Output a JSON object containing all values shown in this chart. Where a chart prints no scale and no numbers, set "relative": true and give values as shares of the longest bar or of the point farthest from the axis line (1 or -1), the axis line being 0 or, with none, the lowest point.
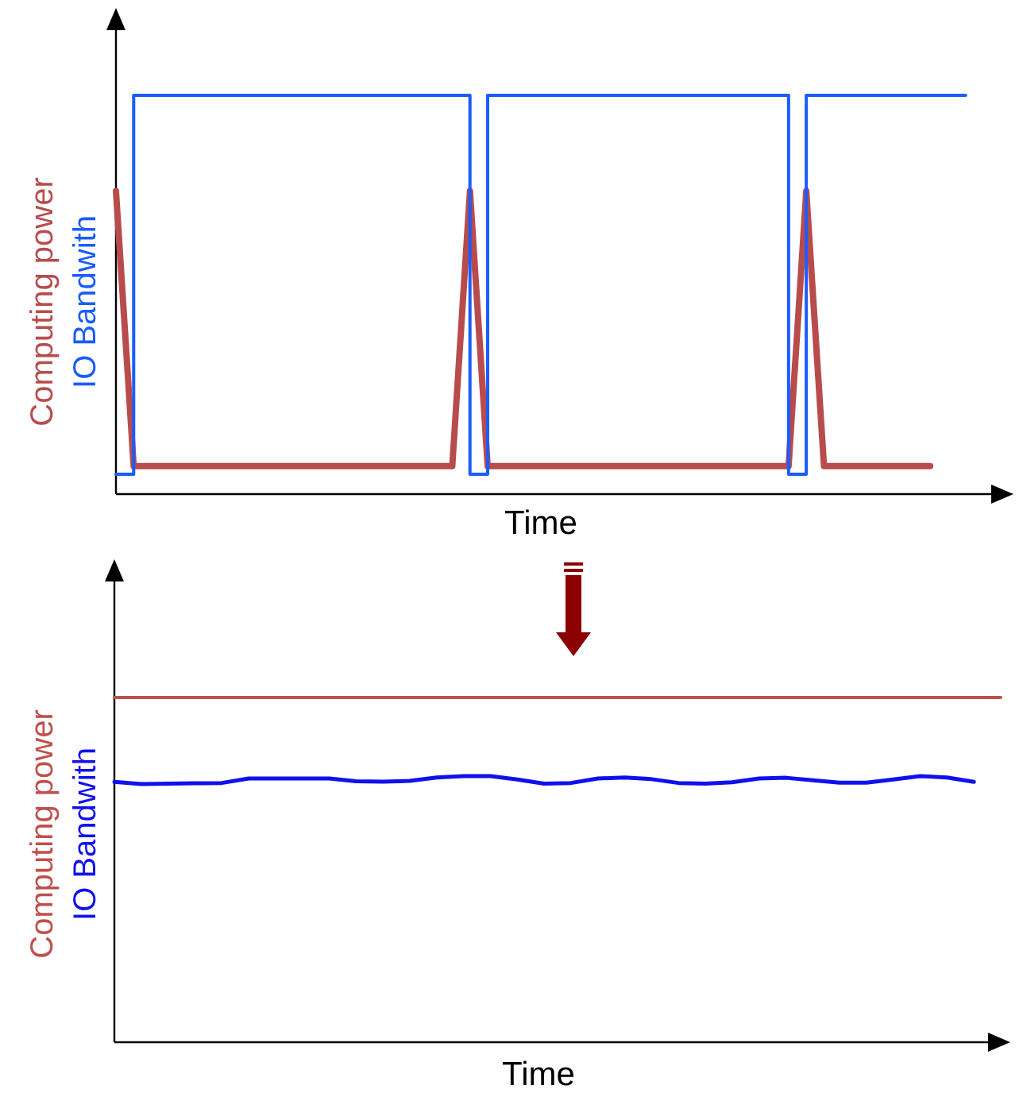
{
  "chart_data": [
    {
      "type": "line",
      "relative": true,
      "xlabel": "Time",
      "categories": [
        null,
        null,
        null,
        null,
        null,
        null,
        null,
        null,
        null,
        null,
        null,
        null,
        null,
        null,
        null,
        null,
        null,
        null,
        null,
        null,
        null,
        null,
        null,
        null,
        null,
        null,
        null,
        null,
        null,
        null,
        null,
        null,
        null,
        null,
        null,
        null,
        null,
        null,
        null,
        null,
        null,
        null,
        null,
        null,
        null,
        null,
        null,
        null,
        null,
        null
      ],
      "series": [
        {
          "name": "Computing power",
          "color": "#b84c4c",
          "values": [
            0.76,
            0.07,
            0.07,
            0.07,
            0.07,
            0.07,
            0.07,
            0.07,
            0.07,
            0.07,
            0.07,
            0.07,
            0.07,
            0.07,
            0.07,
            0.07,
            0.07,
            0.07,
            0.07,
            0.07,
            0.76,
            0.07,
            0.07,
            0.07,
            0.07,
            0.07,
            0.07,
            0.07,
            0.07,
            0.07,
            0.07,
            0.07,
            0.07,
            0.07,
            0.07,
            0.07,
            0.07,
            0.07,
            0.07,
            0.76,
            0.07,
            0.07,
            0.07,
            0.07,
            0.07,
            0.07,
            0.07,
            null,
            null,
            null
          ]
        },
        {
          "name": "IO Bandwith",
          "color": "#1a5cff",
          "type": "step",
          "values": [
            0.05,
            1,
            1,
            1,
            1,
            1,
            1,
            1,
            1,
            1,
            1,
            1,
            1,
            1,
            1,
            1,
            1,
            1,
            1,
            1,
            0.05,
            1,
            1,
            1,
            1,
            1,
            1,
            1,
            1,
            1,
            1,
            1,
            1,
            1,
            1,
            1,
            1,
            1,
            0.05,
            1,
            1,
            1,
            1,
            1,
            1,
            1,
            1,
            1,
            1,
            null
          ]
        }
      ]
    },
    {
      "type": "line",
      "relative": true,
      "xlabel": "Time",
      "categories": [
        null,
        null,
        null,
        null,
        null,
        null,
        null,
        null,
        null,
        null,
        null,
        null,
        null,
        null,
        null,
        null,
        null,
        null,
        null,
        null,
        null,
        null,
        null,
        null,
        null,
        null,
        null,
        null,
        null,
        null,
        null,
        null,
        null,
        null
      ],
      "series": [
        {
          "name": "Computing power",
          "color": "#c0504d",
          "values": [
            1,
            1,
            1,
            1,
            1,
            1,
            1,
            1,
            1,
            1,
            1,
            1,
            1,
            1,
            1,
            1,
            1,
            1,
            1,
            1,
            1,
            1,
            1,
            1,
            1,
            1,
            1,
            1,
            1,
            1,
            1,
            1,
            1,
            1
          ]
        },
        {
          "name": "IO Bandwith",
          "color": "#1010ee",
          "values": [
            0.755,
            0.749,
            0.75,
            0.751,
            0.752,
            0.765,
            0.765,
            0.765,
            0.765,
            0.757,
            0.756,
            0.758,
            0.768,
            0.772,
            0.772,
            0.762,
            0.75,
            0.752,
            0.765,
            0.768,
            0.763,
            0.752,
            0.75,
            0.754,
            0.765,
            0.767,
            0.76,
            0.753,
            0.753,
            0.762,
            0.772,
            0.768,
            0.755,
            null
          ]
        }
      ]
    }
  ]
}
